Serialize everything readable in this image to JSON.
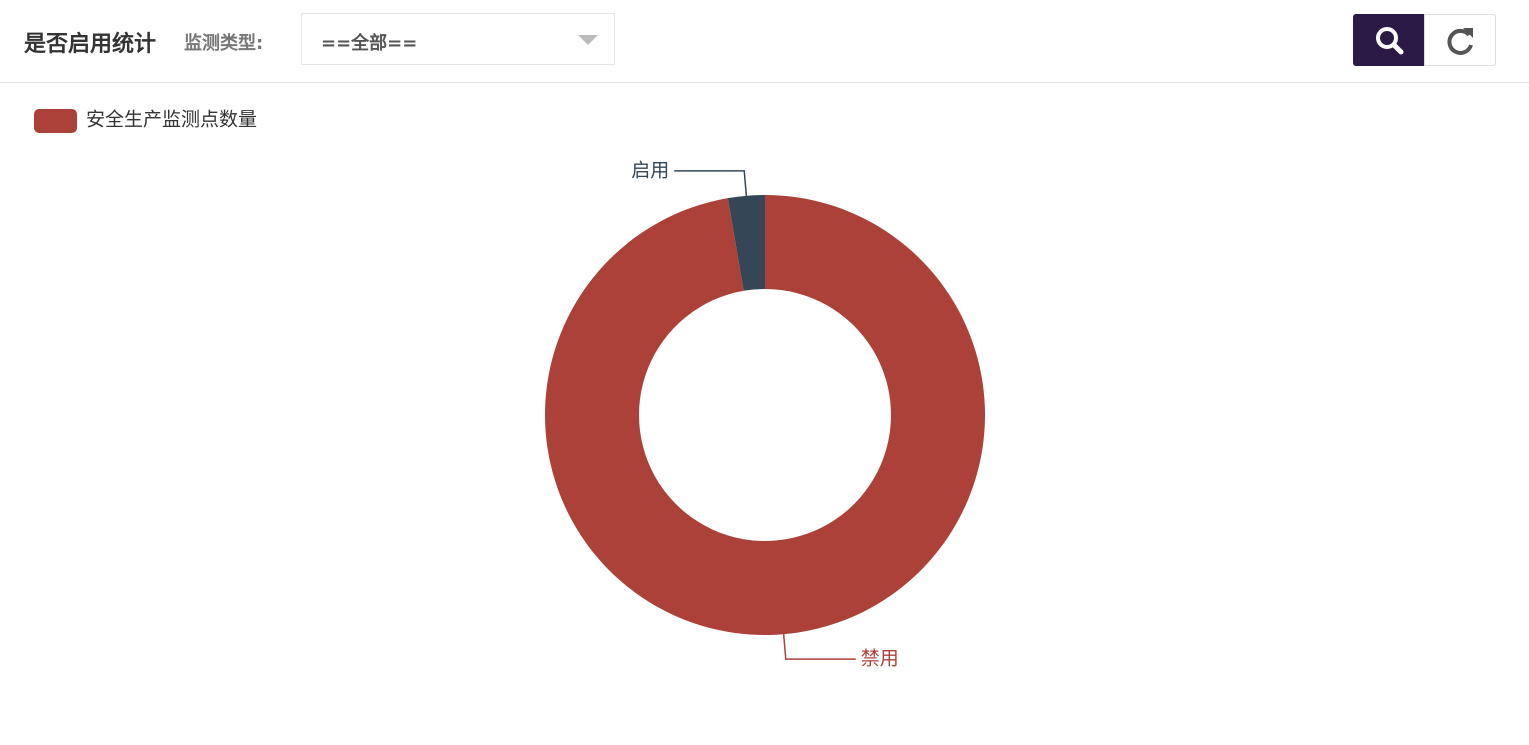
{
  "header": {
    "title": "是否启用统计",
    "filter_label": "监测类型:",
    "filter_value": "==全部=="
  },
  "chart_data": {
    "type": "pie",
    "series_name": "安全生产监测点数量",
    "legend_color": "#ac4139",
    "categories": [
      "禁用",
      "启用"
    ],
    "values": [
      36,
      1
    ],
    "colors": [
      "#ac4139",
      "#354657"
    ]
  }
}
